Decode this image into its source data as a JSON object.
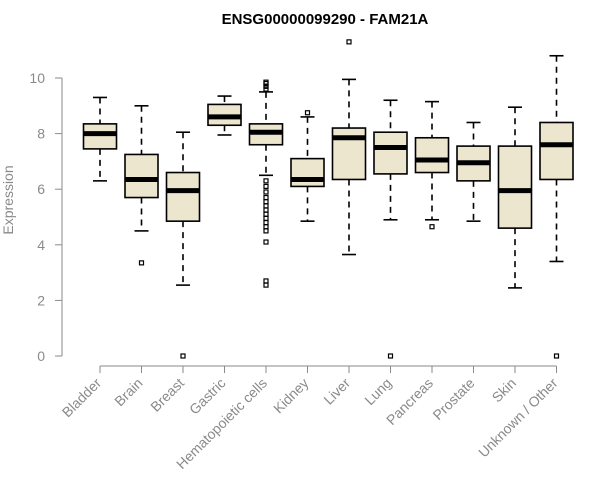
{
  "chart_data": {
    "type": "box",
    "title": "ENSG00000099290 - FAM21A",
    "xlabel": "",
    "ylabel": "Expression",
    "ylim": [
      0,
      10.5
    ],
    "yticks": [
      0,
      2,
      4,
      6,
      8,
      10
    ],
    "grid": false,
    "categories": [
      "Bladder",
      "Brain",
      "Breast",
      "Gastric",
      "Hematopoietic cells",
      "Kidney",
      "Liver",
      "Lung",
      "Pancreas",
      "Prostate",
      "Skin",
      "Unknown / Other"
    ],
    "series": [
      {
        "name": "Bladder",
        "whisker_low": 6.3,
        "q1": 7.45,
        "median": 8.0,
        "q3": 8.35,
        "whisker_high": 9.3,
        "outliers": []
      },
      {
        "name": "Brain",
        "whisker_low": 4.5,
        "q1": 5.7,
        "median": 6.35,
        "q3": 7.25,
        "whisker_high": 9.0,
        "outliers": [
          3.35
        ]
      },
      {
        "name": "Breast",
        "whisker_low": 2.55,
        "q1": 4.85,
        "median": 5.95,
        "q3": 6.6,
        "whisker_high": 8.05,
        "outliers": [
          0.0
        ]
      },
      {
        "name": "Gastric",
        "whisker_low": 7.95,
        "q1": 8.3,
        "median": 8.6,
        "q3": 9.05,
        "whisker_high": 9.35,
        "outliers": []
      },
      {
        "name": "Hematopoietic cells",
        "whisker_low": 6.5,
        "q1": 7.6,
        "median": 8.05,
        "q3": 8.35,
        "whisker_high": 9.5,
        "outliers": [
          9.6,
          9.7,
          9.8,
          9.85,
          6.3,
          6.1,
          5.9,
          5.7,
          5.55,
          5.4,
          5.25,
          5.1,
          4.95,
          4.8,
          4.65,
          4.5,
          4.1,
          2.7,
          2.55
        ]
      },
      {
        "name": "Kidney",
        "whisker_low": 4.85,
        "q1": 6.1,
        "median": 6.35,
        "q3": 7.1,
        "whisker_high": 8.6,
        "outliers": [
          8.75
        ]
      },
      {
        "name": "Liver",
        "whisker_low": 3.65,
        "q1": 6.35,
        "median": 7.85,
        "q3": 8.2,
        "whisker_high": 9.95,
        "outliers": [
          11.3
        ]
      },
      {
        "name": "Lung",
        "whisker_low": 4.9,
        "q1": 6.55,
        "median": 7.5,
        "q3": 8.05,
        "whisker_high": 9.2,
        "outliers": [
          0.0
        ]
      },
      {
        "name": "Pancreas",
        "whisker_low": 4.9,
        "q1": 6.6,
        "median": 7.05,
        "q3": 7.85,
        "whisker_high": 9.15,
        "outliers": [
          4.65
        ]
      },
      {
        "name": "Prostate",
        "whisker_low": 4.85,
        "q1": 6.3,
        "median": 6.95,
        "q3": 7.55,
        "whisker_high": 8.4,
        "outliers": []
      },
      {
        "name": "Skin",
        "whisker_low": 2.45,
        "q1": 4.6,
        "median": 5.95,
        "q3": 7.55,
        "whisker_high": 8.95,
        "outliers": []
      },
      {
        "name": "Unknown / Other",
        "whisker_low": 3.4,
        "q1": 6.35,
        "median": 7.6,
        "q3": 8.4,
        "whisker_high": 10.8,
        "outliers": [
          0.0
        ]
      }
    ]
  }
}
